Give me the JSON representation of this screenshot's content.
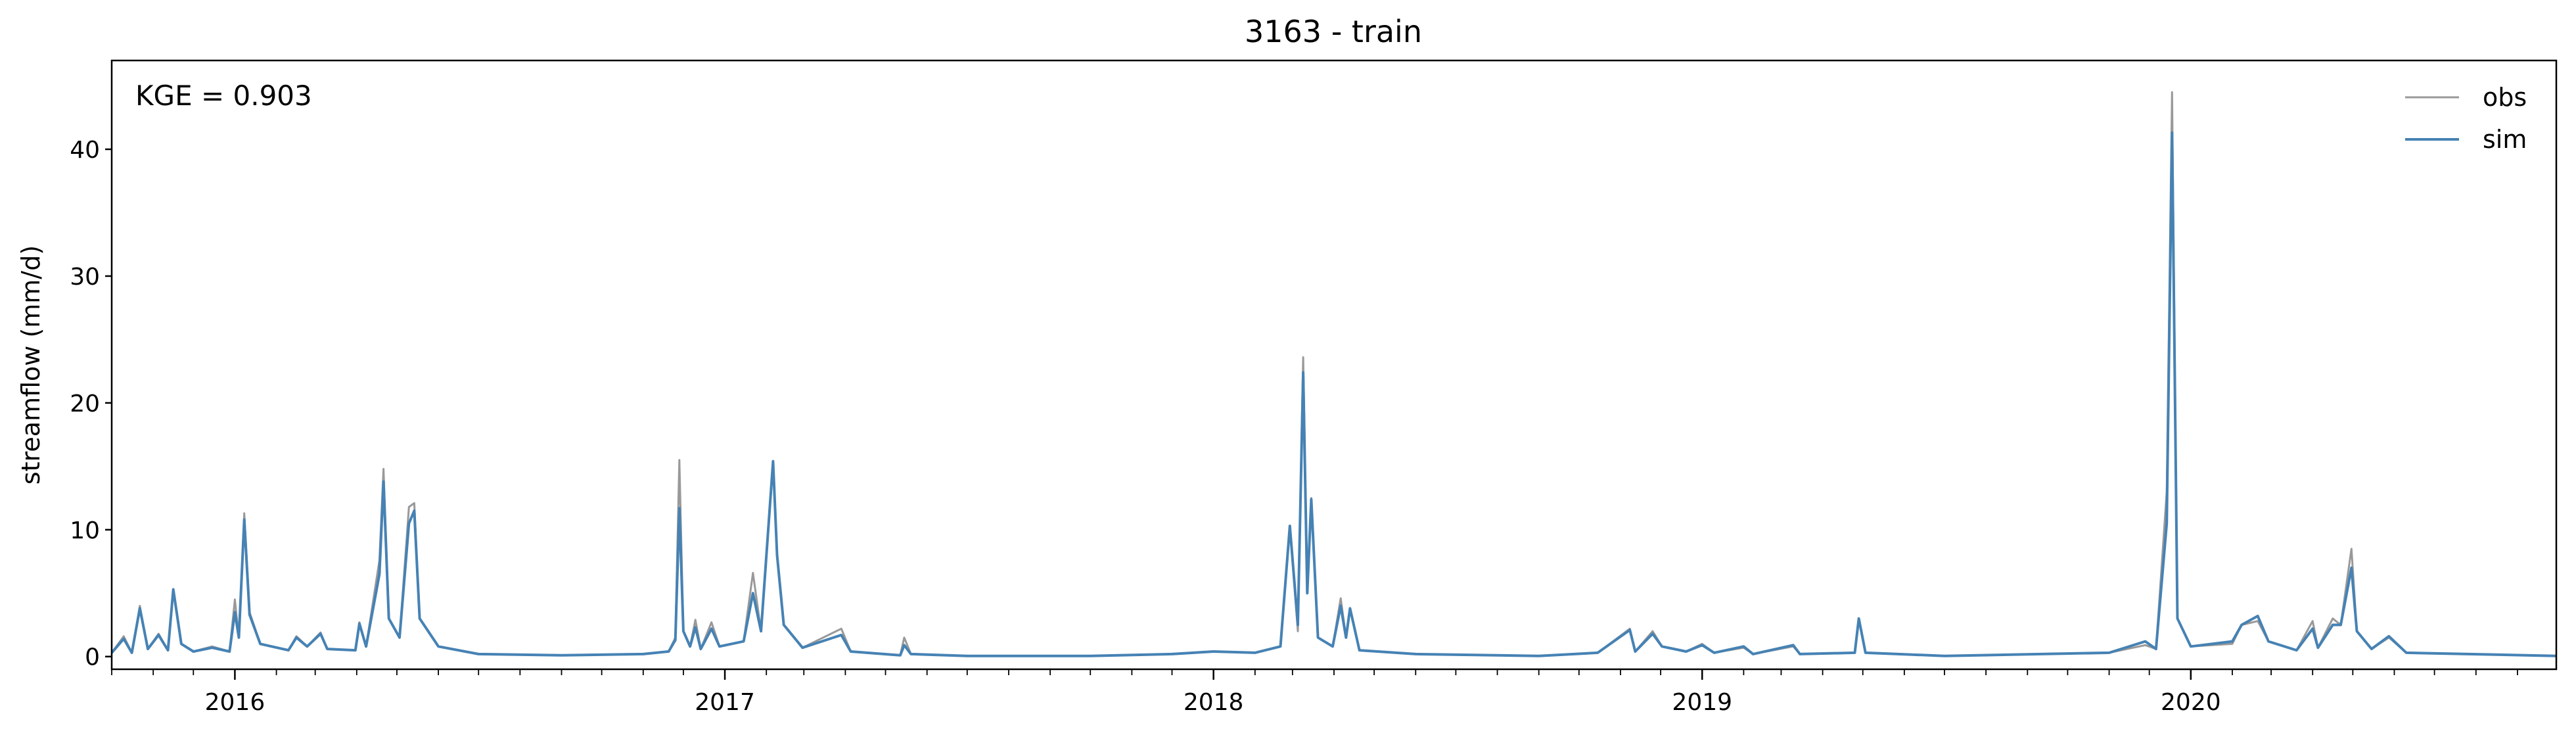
{
  "chart_data": {
    "type": "line",
    "title": "3163 - train",
    "xlabel": "",
    "ylabel": "streamflow (mm/d)",
    "annotation": "KGE = 0.903",
    "legend_position": "top-right",
    "grid": false,
    "xlim": [
      "2015-10-01",
      "2020-09-30"
    ],
    "ylim": [
      -1,
      47
    ],
    "x_ticks": [
      "2016",
      "2017",
      "2018",
      "2019",
      "2020"
    ],
    "y_ticks": [
      0,
      10,
      20,
      30,
      40
    ],
    "series": [
      {
        "name": "obs",
        "color": "#999999",
        "points": [
          [
            "2015-10-01",
            0.3
          ],
          [
            "2015-10-10",
            1.6
          ],
          [
            "2015-10-16",
            0.3
          ],
          [
            "2015-10-22",
            4.0
          ],
          [
            "2015-10-28",
            0.6
          ],
          [
            "2015-11-05",
            1.8
          ],
          [
            "2015-11-12",
            0.5
          ],
          [
            "2015-11-16",
            5.3
          ],
          [
            "2015-11-22",
            1.0
          ],
          [
            "2015-12-01",
            0.4
          ],
          [
            "2015-12-15",
            0.8
          ],
          [
            "2015-12-28",
            0.4
          ],
          [
            "2016-01-01",
            4.5
          ],
          [
            "2016-01-04",
            1.5
          ],
          [
            "2016-01-08",
            11.3
          ],
          [
            "2016-01-12",
            3.5
          ],
          [
            "2016-01-20",
            1.0
          ],
          [
            "2016-02-10",
            0.5
          ],
          [
            "2016-02-16",
            1.6
          ],
          [
            "2016-02-24",
            0.8
          ],
          [
            "2016-03-05",
            1.9
          ],
          [
            "2016-03-10",
            0.6
          ],
          [
            "2016-03-31",
            0.5
          ],
          [
            "2016-04-03",
            2.7
          ],
          [
            "2016-04-08",
            0.8
          ],
          [
            "2016-04-18",
            7.6
          ],
          [
            "2016-04-21",
            14.8
          ],
          [
            "2016-04-25",
            3.0
          ],
          [
            "2016-05-03",
            1.5
          ],
          [
            "2016-05-10",
            11.8
          ],
          [
            "2016-05-14",
            12.1
          ],
          [
            "2016-05-18",
            3.0
          ],
          [
            "2016-06-01",
            0.8
          ],
          [
            "2016-07-01",
            0.2
          ],
          [
            "2016-09-01",
            0.1
          ],
          [
            "2016-11-01",
            0.2
          ],
          [
            "2016-11-20",
            0.4
          ],
          [
            "2016-11-25",
            1.5
          ],
          [
            "2016-11-28",
            15.5
          ],
          [
            "2016-12-01",
            2.0
          ],
          [
            "2016-12-06",
            0.8
          ],
          [
            "2016-12-10",
            2.9
          ],
          [
            "2016-12-14",
            0.6
          ],
          [
            "2016-12-22",
            2.7
          ],
          [
            "2016-12-28",
            0.8
          ],
          [
            "2017-01-15",
            1.2
          ],
          [
            "2017-01-22",
            6.6
          ],
          [
            "2017-01-28",
            2.0
          ],
          [
            "2017-02-06",
            15.2
          ],
          [
            "2017-02-09",
            8.0
          ],
          [
            "2017-02-14",
            2.5
          ],
          [
            "2017-02-28",
            0.7
          ],
          [
            "2017-03-29",
            2.2
          ],
          [
            "2017-04-05",
            0.4
          ],
          [
            "2017-05-12",
            0.1
          ],
          [
            "2017-05-15",
            1.5
          ],
          [
            "2017-05-20",
            0.2
          ],
          [
            "2017-07-01",
            0.05
          ],
          [
            "2017-10-01",
            0.05
          ],
          [
            "2017-12-01",
            0.2
          ],
          [
            "2018-01-01",
            0.4
          ],
          [
            "2018-02-01",
            0.3
          ],
          [
            "2018-02-20",
            0.8
          ],
          [
            "2018-02-27",
            10.2
          ],
          [
            "2018-03-05",
            2.0
          ],
          [
            "2018-03-09",
            23.6
          ],
          [
            "2018-03-12",
            5.0
          ],
          [
            "2018-03-15",
            12.5
          ],
          [
            "2018-03-20",
            1.5
          ],
          [
            "2018-03-31",
            0.8
          ],
          [
            "2018-04-06",
            4.6
          ],
          [
            "2018-04-10",
            1.5
          ],
          [
            "2018-04-13",
            3.7
          ],
          [
            "2018-04-20",
            0.5
          ],
          [
            "2018-06-01",
            0.2
          ],
          [
            "2018-09-01",
            0.05
          ],
          [
            "2018-10-15",
            0.3
          ],
          [
            "2018-11-08",
            2.2
          ],
          [
            "2018-11-12",
            0.4
          ],
          [
            "2018-11-25",
            2.0
          ],
          [
            "2018-12-02",
            0.8
          ],
          [
            "2018-12-20",
            0.4
          ],
          [
            "2019-01-01",
            1.0
          ],
          [
            "2019-01-10",
            0.3
          ],
          [
            "2019-02-01",
            0.7
          ],
          [
            "2019-02-08",
            0.2
          ],
          [
            "2019-03-10",
            0.8
          ],
          [
            "2019-03-15",
            0.2
          ],
          [
            "2019-04-25",
            0.3
          ],
          [
            "2019-04-28",
            3.0
          ],
          [
            "2019-05-03",
            0.3
          ],
          [
            "2019-07-01",
            0.05
          ],
          [
            "2019-11-01",
            0.3
          ],
          [
            "2019-11-28",
            0.9
          ],
          [
            "2019-12-06",
            0.6
          ],
          [
            "2019-12-14",
            13.0
          ],
          [
            "2019-12-18",
            44.5
          ],
          [
            "2019-12-22",
            3.0
          ],
          [
            "2020-01-01",
            0.8
          ],
          [
            "2020-02-01",
            1.0
          ],
          [
            "2020-02-08",
            2.5
          ],
          [
            "2020-02-20",
            2.8
          ],
          [
            "2020-02-28",
            1.2
          ],
          [
            "2020-03-20",
            0.5
          ],
          [
            "2020-04-01",
            2.8
          ],
          [
            "2020-04-05",
            0.7
          ],
          [
            "2020-04-16",
            3.0
          ],
          [
            "2020-04-22",
            2.5
          ],
          [
            "2020-04-30",
            8.5
          ],
          [
            "2020-05-04",
            2.0
          ],
          [
            "2020-05-15",
            0.6
          ],
          [
            "2020-05-28",
            1.5
          ],
          [
            "2020-06-10",
            0.3
          ],
          [
            "2020-09-30",
            0.05
          ]
        ]
      },
      {
        "name": "sim",
        "color": "#4682b4",
        "points": [
          [
            "2015-10-01",
            0.3
          ],
          [
            "2015-10-10",
            1.4
          ],
          [
            "2015-10-16",
            0.3
          ],
          [
            "2015-10-22",
            3.8
          ],
          [
            "2015-10-28",
            0.6
          ],
          [
            "2015-11-05",
            1.7
          ],
          [
            "2015-11-12",
            0.5
          ],
          [
            "2015-11-16",
            5.3
          ],
          [
            "2015-11-22",
            1.0
          ],
          [
            "2015-12-01",
            0.4
          ],
          [
            "2015-12-15",
            0.7
          ],
          [
            "2015-12-28",
            0.4
          ],
          [
            "2016-01-01",
            3.5
          ],
          [
            "2016-01-04",
            1.5
          ],
          [
            "2016-01-08",
            10.8
          ],
          [
            "2016-01-12",
            3.3
          ],
          [
            "2016-01-20",
            1.0
          ],
          [
            "2016-02-10",
            0.5
          ],
          [
            "2016-02-16",
            1.5
          ],
          [
            "2016-02-24",
            0.8
          ],
          [
            "2016-03-05",
            1.8
          ],
          [
            "2016-03-10",
            0.6
          ],
          [
            "2016-03-31",
            0.5
          ],
          [
            "2016-04-03",
            2.6
          ],
          [
            "2016-04-08",
            0.8
          ],
          [
            "2016-04-18",
            6.5
          ],
          [
            "2016-04-21",
            13.8
          ],
          [
            "2016-04-25",
            3.0
          ],
          [
            "2016-05-03",
            1.5
          ],
          [
            "2016-05-10",
            10.5
          ],
          [
            "2016-05-14",
            11.5
          ],
          [
            "2016-05-18",
            3.0
          ],
          [
            "2016-06-01",
            0.8
          ],
          [
            "2016-07-01",
            0.2
          ],
          [
            "2016-09-01",
            0.1
          ],
          [
            "2016-11-01",
            0.2
          ],
          [
            "2016-11-20",
            0.4
          ],
          [
            "2016-11-25",
            1.3
          ],
          [
            "2016-11-28",
            11.7
          ],
          [
            "2016-12-01",
            2.0
          ],
          [
            "2016-12-06",
            0.8
          ],
          [
            "2016-12-10",
            2.3
          ],
          [
            "2016-12-14",
            0.6
          ],
          [
            "2016-12-22",
            2.2
          ],
          [
            "2016-12-28",
            0.8
          ],
          [
            "2017-01-15",
            1.2
          ],
          [
            "2017-01-22",
            5.0
          ],
          [
            "2017-01-28",
            2.0
          ],
          [
            "2017-02-06",
            15.4
          ],
          [
            "2017-02-09",
            8.0
          ],
          [
            "2017-02-14",
            2.5
          ],
          [
            "2017-02-28",
            0.7
          ],
          [
            "2017-03-29",
            1.7
          ],
          [
            "2017-04-05",
            0.4
          ],
          [
            "2017-05-12",
            0.1
          ],
          [
            "2017-05-15",
            0.9
          ],
          [
            "2017-05-20",
            0.2
          ],
          [
            "2017-07-01",
            0.05
          ],
          [
            "2017-10-01",
            0.05
          ],
          [
            "2017-12-01",
            0.2
          ],
          [
            "2018-01-01",
            0.4
          ],
          [
            "2018-02-01",
            0.3
          ],
          [
            "2018-02-20",
            0.8
          ],
          [
            "2018-02-27",
            10.3
          ],
          [
            "2018-03-05",
            2.5
          ],
          [
            "2018-03-09",
            22.4
          ],
          [
            "2018-03-12",
            5.0
          ],
          [
            "2018-03-15",
            12.4
          ],
          [
            "2018-03-20",
            1.5
          ],
          [
            "2018-03-31",
            0.8
          ],
          [
            "2018-04-06",
            4.0
          ],
          [
            "2018-04-10",
            1.5
          ],
          [
            "2018-04-13",
            3.8
          ],
          [
            "2018-04-20",
            0.5
          ],
          [
            "2018-06-01",
            0.2
          ],
          [
            "2018-09-01",
            0.05
          ],
          [
            "2018-10-15",
            0.3
          ],
          [
            "2018-11-08",
            2.1
          ],
          [
            "2018-11-12",
            0.4
          ],
          [
            "2018-11-25",
            1.8
          ],
          [
            "2018-12-02",
            0.8
          ],
          [
            "2018-12-20",
            0.4
          ],
          [
            "2019-01-01",
            0.9
          ],
          [
            "2019-01-10",
            0.3
          ],
          [
            "2019-02-01",
            0.8
          ],
          [
            "2019-02-08",
            0.2
          ],
          [
            "2019-03-10",
            0.9
          ],
          [
            "2019-03-15",
            0.2
          ],
          [
            "2019-04-25",
            0.3
          ],
          [
            "2019-04-28",
            3.0
          ],
          [
            "2019-05-03",
            0.3
          ],
          [
            "2019-07-01",
            0.05
          ],
          [
            "2019-11-01",
            0.3
          ],
          [
            "2019-11-28",
            1.2
          ],
          [
            "2019-12-06",
            0.6
          ],
          [
            "2019-12-14",
            10.5
          ],
          [
            "2019-12-18",
            41.3
          ],
          [
            "2019-12-22",
            3.0
          ],
          [
            "2020-01-01",
            0.8
          ],
          [
            "2020-02-01",
            1.2
          ],
          [
            "2020-02-08",
            2.5
          ],
          [
            "2020-02-20",
            3.2
          ],
          [
            "2020-02-28",
            1.2
          ],
          [
            "2020-03-20",
            0.5
          ],
          [
            "2020-04-01",
            2.2
          ],
          [
            "2020-04-05",
            0.7
          ],
          [
            "2020-04-16",
            2.5
          ],
          [
            "2020-04-22",
            2.5
          ],
          [
            "2020-04-30",
            7.0
          ],
          [
            "2020-05-04",
            2.0
          ],
          [
            "2020-05-15",
            0.6
          ],
          [
            "2020-05-28",
            1.6
          ],
          [
            "2020-06-10",
            0.3
          ],
          [
            "2020-09-30",
            0.05
          ]
        ]
      }
    ]
  }
}
